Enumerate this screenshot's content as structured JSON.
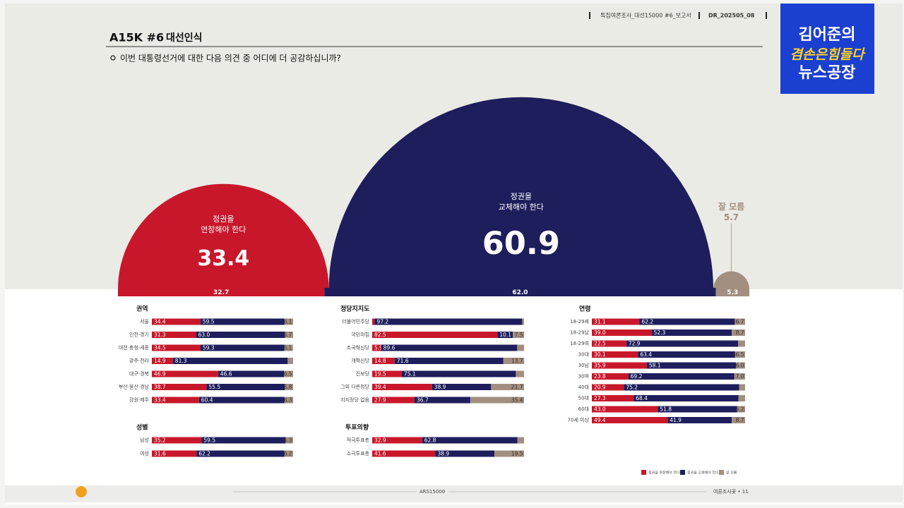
{
  "header": {
    "report": "특집여론조사_대선15000 #6_보고서",
    "code": "DR_202505_08"
  },
  "logo": {
    "line1": "김어준의",
    "line2": "겸손은힘들다",
    "line3": "뉴스공장"
  },
  "footer": {
    "center": "ARS15000",
    "right": "여론조사꽃 • 11"
  },
  "chart_data": [
    {
      "type": "semicircle",
      "title": "A15K #6",
      "subtitle": "대선인식",
      "question": "이번 대통령선거에 대한 다음 의견 중 어디에 더 공감하십니까?",
      "categories": [
        "정권을\n연장해야 한다",
        "정권을\n교체해야 한다",
        "잘 모름"
      ],
      "values": [
        33.4,
        60.9,
        5.7
      ],
      "colors": [
        "#c8172b",
        "#1e1e5c",
        "#a28f80"
      ],
      "bar_values": [
        32.7,
        62.0,
        5.3
      ],
      "bar_value_labels": [
        "32.7",
        "62.0",
        "5.3"
      ]
    },
    {
      "type": "stacked_bar",
      "legend": "bottom-right",
      "series": [
        {
          "name": "정권을 연장해야 한다",
          "color": "#c8172b"
        },
        {
          "name": "정권을 교체해야 한다",
          "color": "#1e1e5c"
        },
        {
          "name": "잘 모름",
          "color": "#a28f80"
        }
      ],
      "panels": [
        {
          "title": "권역",
          "categories": [
            "서울",
            "인천·경기",
            "대전·충청·세종",
            "광주·전라",
            "대구·경북",
            "부산·울산·경남",
            "강원·제주"
          ],
          "values": [
            [
              34.4,
              59.5,
              6.1
            ],
            [
              31.3,
              63.0,
              5.7
            ],
            [
              34.5,
              59.3,
              6.1
            ],
            [
              14.9,
              81.3,
              3.8
            ],
            [
              46.9,
              46.6,
              6.5
            ],
            [
              38.7,
              55.5,
              5.8
            ],
            [
              33.4,
              60.4,
              6.3
            ]
          ],
          "value_labels": [
            [
              "34.4",
              "59.5",
              "6.1"
            ],
            [
              "31.3",
              "63.0",
              "5.7"
            ],
            [
              "34.5",
              "59.3",
              "6.1"
            ],
            [
              "14.9",
              "81.3",
              null
            ],
            [
              "46.9",
              "46.6",
              "6.5"
            ],
            [
              "38.7",
              "55.5",
              "5.8"
            ],
            [
              "33.4",
              "60.4",
              "6.3"
            ]
          ]
        },
        {
          "title": "성별",
          "categories": [
            "남성",
            "여성"
          ],
          "values": [
            [
              35.2,
              59.5,
              5.3
            ],
            [
              31.6,
              62.2,
              6.2
            ]
          ],
          "value_labels": [
            [
              "35.2",
              "59.5",
              "5.3"
            ],
            [
              "31.6",
              "62.2",
              "6.2"
            ]
          ]
        },
        {
          "title": "정당지지도",
          "categories": [
            "더불어민주당",
            "국민의힘",
            "조국혁신당",
            "개혁신당",
            "진보당",
            "그외 다른정당",
            "지지정당 없음"
          ],
          "values": [
            [
              1.6,
              97.2,
              1.2
            ],
            [
              82.5,
              10.1,
              7.5
            ],
            [
              5.9,
              89.6,
              4.5
            ],
            [
              14.8,
              71.6,
              13.7
            ],
            [
              19.5,
              75.1,
              5.4
            ],
            [
              39.4,
              38.9,
              21.7
            ],
            [
              27.9,
              36.7,
              35.4
            ]
          ],
          "value_labels": [
            [
              null,
              "97.2",
              null
            ],
            [
              "82.5",
              "10.1",
              "7.5"
            ],
            [
              "5.9",
              "89.6",
              null
            ],
            [
              "14.8",
              "71.6",
              "13.7"
            ],
            [
              "19.5",
              "75.1",
              null
            ],
            [
              "39.4",
              "38.9",
              "21.7"
            ],
            [
              "27.9",
              "36.7",
              "35.4"
            ]
          ]
        },
        {
          "title": "투표의향",
          "categories": [
            "적극투표층",
            "소극투표층"
          ],
          "values": [
            [
              32.9,
              62.8,
              4.3
            ],
            [
              41.6,
              38.9,
              19.5
            ]
          ],
          "value_labels": [
            [
              "32.9",
              "62.8",
              null
            ],
            [
              "41.6",
              "38.9",
              "19.5"
            ]
          ]
        },
        {
          "title": "연령",
          "categories": [
            "18-29세",
            "18-29남",
            "18-29여",
            "30대",
            "30남",
            "30여",
            "40대",
            "50대",
            "60대",
            "70세 이상"
          ],
          "values": [
            [
              31.1,
              62.2,
              6.7
            ],
            [
              39.0,
              52.3,
              8.7
            ],
            [
              22.5,
              72.9,
              4.6
            ],
            [
              30.1,
              63.4,
              6.5
            ],
            [
              35.9,
              58.1,
              6.0
            ],
            [
              23.8,
              69.2,
              7.0
            ],
            [
              20.9,
              75.2,
              3.9
            ],
            [
              27.3,
              68.4,
              4.3
            ],
            [
              43.0,
              51.8,
              5.2
            ],
            [
              49.4,
              41.9,
              8.7
            ]
          ],
          "value_labels": [
            [
              "31.1",
              "62.2",
              "6.7"
            ],
            [
              "39.0",
              "52.3",
              "8.7"
            ],
            [
              "22.5",
              "72.9",
              null
            ],
            [
              "30.1",
              "63.4",
              "6.5"
            ],
            [
              "35.9",
              "58.1",
              "6.0"
            ],
            [
              "23.8",
              "69.2",
              "7.0"
            ],
            [
              "20.9",
              "75.2",
              null
            ],
            [
              "27.3",
              "68.4",
              null
            ],
            [
              "43.0",
              "51.8",
              "5.2"
            ],
            [
              "49.4",
              "41.9",
              "8.7"
            ]
          ]
        }
      ]
    }
  ]
}
